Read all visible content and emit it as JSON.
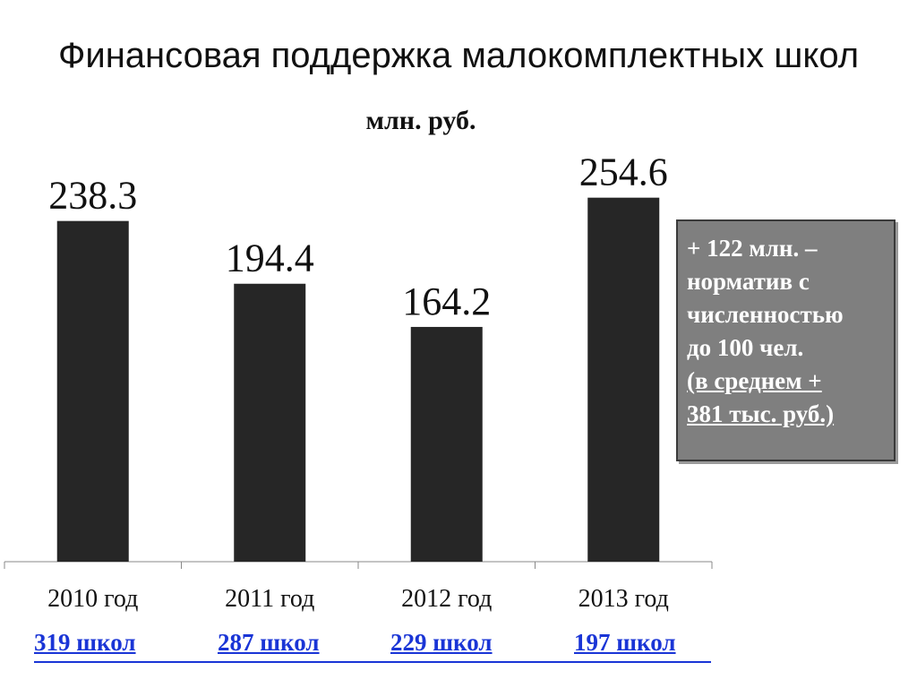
{
  "chart_data": {
    "type": "bar",
    "title": "Финансовая поддержка малокомплектных школ",
    "unit": "млн. руб.",
    "categories": [
      "2010 год",
      "2011 год",
      "2012 год",
      "2013 год"
    ],
    "values": [
      238.3,
      194.4,
      164.2,
      254.6
    ],
    "value_labels": [
      "238.3",
      "194.4",
      "164.2",
      "254.6"
    ],
    "bar_color": "#262626",
    "school_counts": [
      "319 школ",
      "287 школ",
      "229 школ",
      "197 школ"
    ],
    "school_color": "#1a35d6"
  },
  "note": {
    "lines": [
      "+ 122 млн. –",
      "норматив с",
      "численностью",
      "до 100 чел."
    ],
    "underlined_lines": [
      "(в среднем  +",
      "381 тыс. руб.)"
    ]
  }
}
